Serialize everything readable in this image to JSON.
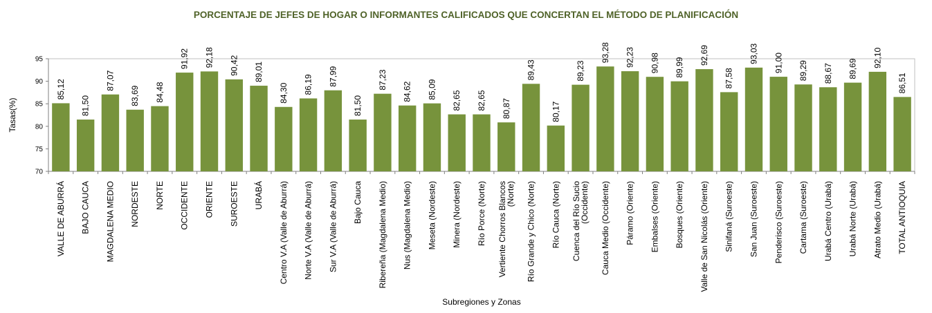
{
  "chart_data": {
    "type": "bar",
    "title": "PORCENTAJE DE JEFES DE HOGAR O INFORMANTES CALIFICADOS QUE CONCERTAN EL MÉTODO DE PLANIFICACIÓN",
    "xlabel": "Subregiones y Zonas",
    "ylabel": "Tasas(%)",
    "ylim": [
      70,
      95
    ],
    "yticks": [
      "70",
      "75",
      "80",
      "85",
      "90",
      "95"
    ],
    "bar_color": "#77933c",
    "title_color": "#4f6228",
    "grid": false,
    "legend": "none",
    "categories": [
      [
        "VALLE DE ABURRÁ"
      ],
      [
        "BAJO CAUCA"
      ],
      [
        "MAGDALENA MEDIO"
      ],
      [
        "NORDESTE"
      ],
      [
        "NORTE"
      ],
      [
        "OCCIDENTE"
      ],
      [
        "ORIENTE"
      ],
      [
        "SUROESTE"
      ],
      [
        "URABÁ"
      ],
      [
        "Centro V.A (Valle de Aburrá)"
      ],
      [
        "Norte V.A (Valle de Aburrá)"
      ],
      [
        "Sur V.A (Valle de Aburrá)"
      ],
      [
        "Bajo Cauca"
      ],
      [
        "Ribereña  (Magdalena Medio)"
      ],
      [
        "Nus  (Magdalena Medio)"
      ],
      [
        "Meseta  (Nordeste)"
      ],
      [
        "Minera  (Nordeste)"
      ],
      [
        "Río Porce    (Norte)"
      ],
      [
        "Vertiente Chorros Blancos",
        "(Norte)"
      ],
      [
        "Río Grande y Chico  (Norte)"
      ],
      [
        "Río Cauca  (Norte)"
      ],
      [
        "Cuenca del Río Sucio",
        "(Occidente)"
      ],
      [
        "Cauca Medio  (Occidente)"
      ],
      [
        "Páramo   (Oriente)"
      ],
      [
        "Embalses (Oriente)"
      ],
      [
        "Bosques  (Oriente)"
      ],
      [
        "Valle de San Nicolás  (Oriente)"
      ],
      [
        "Sinifaná  (Suroeste)"
      ],
      [
        "San Juan  (Suroeste)"
      ],
      [
        "Penderisco  (Suroeste)"
      ],
      [
        "Cartama  (Suroeste)"
      ],
      [
        "Urabá Centro   (Urabá)"
      ],
      [
        "Urabá Norte  (Urabá)"
      ],
      [
        "Atrato Medio  (Urabá)"
      ],
      [
        "TOTAL ANTIOQUIA"
      ]
    ],
    "values": [
      85.12,
      81.5,
      87.07,
      83.69,
      84.48,
      91.92,
      92.18,
      90.42,
      89.01,
      84.3,
      86.19,
      87.99,
      81.5,
      87.23,
      84.62,
      85.09,
      82.65,
      82.65,
      80.87,
      89.43,
      80.17,
      89.23,
      93.28,
      92.23,
      90.98,
      89.99,
      92.69,
      87.58,
      93.03,
      91.0,
      89.29,
      88.67,
      89.69,
      92.1,
      86.51
    ],
    "value_labels": [
      "85,12",
      "81,50",
      "87,07",
      "83,69",
      "84,48",
      "91,92",
      "92,18",
      "90,42",
      "89,01",
      "84,30",
      "86,19",
      "87,99",
      "81,50",
      "87,23",
      "84,62",
      "85,09",
      "82,65",
      "82,65",
      "80,87",
      "89,43",
      "80,17",
      "89,23",
      "93,28",
      "92,23",
      "90,98",
      "89,99",
      "92,69",
      "87,58",
      "93,03",
      "91,00",
      "89,29",
      "88,67",
      "89,69",
      "92,10",
      "86,51"
    ]
  }
}
